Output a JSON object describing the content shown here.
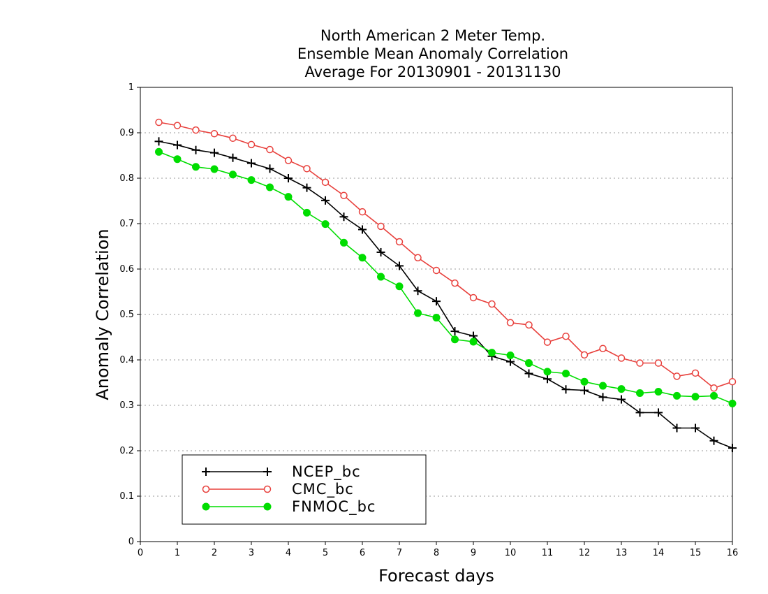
{
  "chart_data": {
    "type": "line",
    "title": [
      "North American 2 Meter Temp.",
      "Ensemble Mean Anomaly Correlation",
      "Average For 20130901 - 20131130"
    ],
    "xlabel": "Forecast days",
    "ylabel": "Anomaly Correlation",
    "xlim": [
      0,
      16
    ],
    "ylim": [
      0,
      1
    ],
    "xticks": [
      "0",
      "1",
      "2",
      "3",
      "4",
      "5",
      "6",
      "7",
      "8",
      "9",
      "10",
      "11",
      "12",
      "13",
      "14",
      "15",
      "16"
    ],
    "yticks": [
      "0",
      "0.1",
      "0.2",
      "0.3",
      "0.4",
      "0.5",
      "0.6",
      "0.7",
      "0.8",
      "0.9",
      "1"
    ],
    "grid": "horizontal dotted",
    "legend_position": "bottom-left",
    "x": [
      0.5,
      1,
      1.5,
      2,
      2.5,
      3,
      3.5,
      4,
      4.5,
      5,
      5.5,
      6,
      6.5,
      7,
      7.5,
      8,
      8.5,
      9,
      9.5,
      10,
      10.5,
      11,
      11.5,
      12,
      12.5,
      13,
      13.5,
      14,
      14.5,
      15,
      15.5,
      16
    ],
    "series": [
      {
        "name": "NCEP_bc",
        "color": "#000000",
        "marker": "plus",
        "values": [
          0.881,
          0.873,
          0.862,
          0.856,
          0.845,
          0.833,
          0.821,
          0.8,
          0.779,
          0.751,
          0.715,
          0.687,
          0.637,
          0.607,
          0.552,
          0.529,
          0.463,
          0.453,
          0.408,
          0.396,
          0.37,
          0.358,
          0.335,
          0.333,
          0.318,
          0.313,
          0.284,
          0.284,
          0.25,
          0.25,
          0.222,
          0.206
        ]
      },
      {
        "name": "CMC_bc",
        "color": "#e8403c",
        "marker": "open-circle",
        "values": [
          0.923,
          0.916,
          0.906,
          0.898,
          0.888,
          0.874,
          0.863,
          0.839,
          0.821,
          0.791,
          0.762,
          0.726,
          0.694,
          0.66,
          0.625,
          0.597,
          0.569,
          0.537,
          0.523,
          0.482,
          0.477,
          0.439,
          0.452,
          0.411,
          0.425,
          0.404,
          0.393,
          0.393,
          0.364,
          0.371,
          0.338,
          0.352
        ]
      },
      {
        "name": "FNMOC_bc",
        "color": "#00dd00",
        "marker": "filled-circle",
        "values": [
          0.858,
          0.842,
          0.825,
          0.82,
          0.808,
          0.796,
          0.78,
          0.759,
          0.724,
          0.699,
          0.658,
          0.625,
          0.583,
          0.562,
          0.503,
          0.493,
          0.445,
          0.44,
          0.416,
          0.41,
          0.393,
          0.374,
          0.37,
          0.352,
          0.343,
          0.336,
          0.327,
          0.33,
          0.321,
          0.319,
          0.321,
          0.304
        ]
      }
    ]
  }
}
